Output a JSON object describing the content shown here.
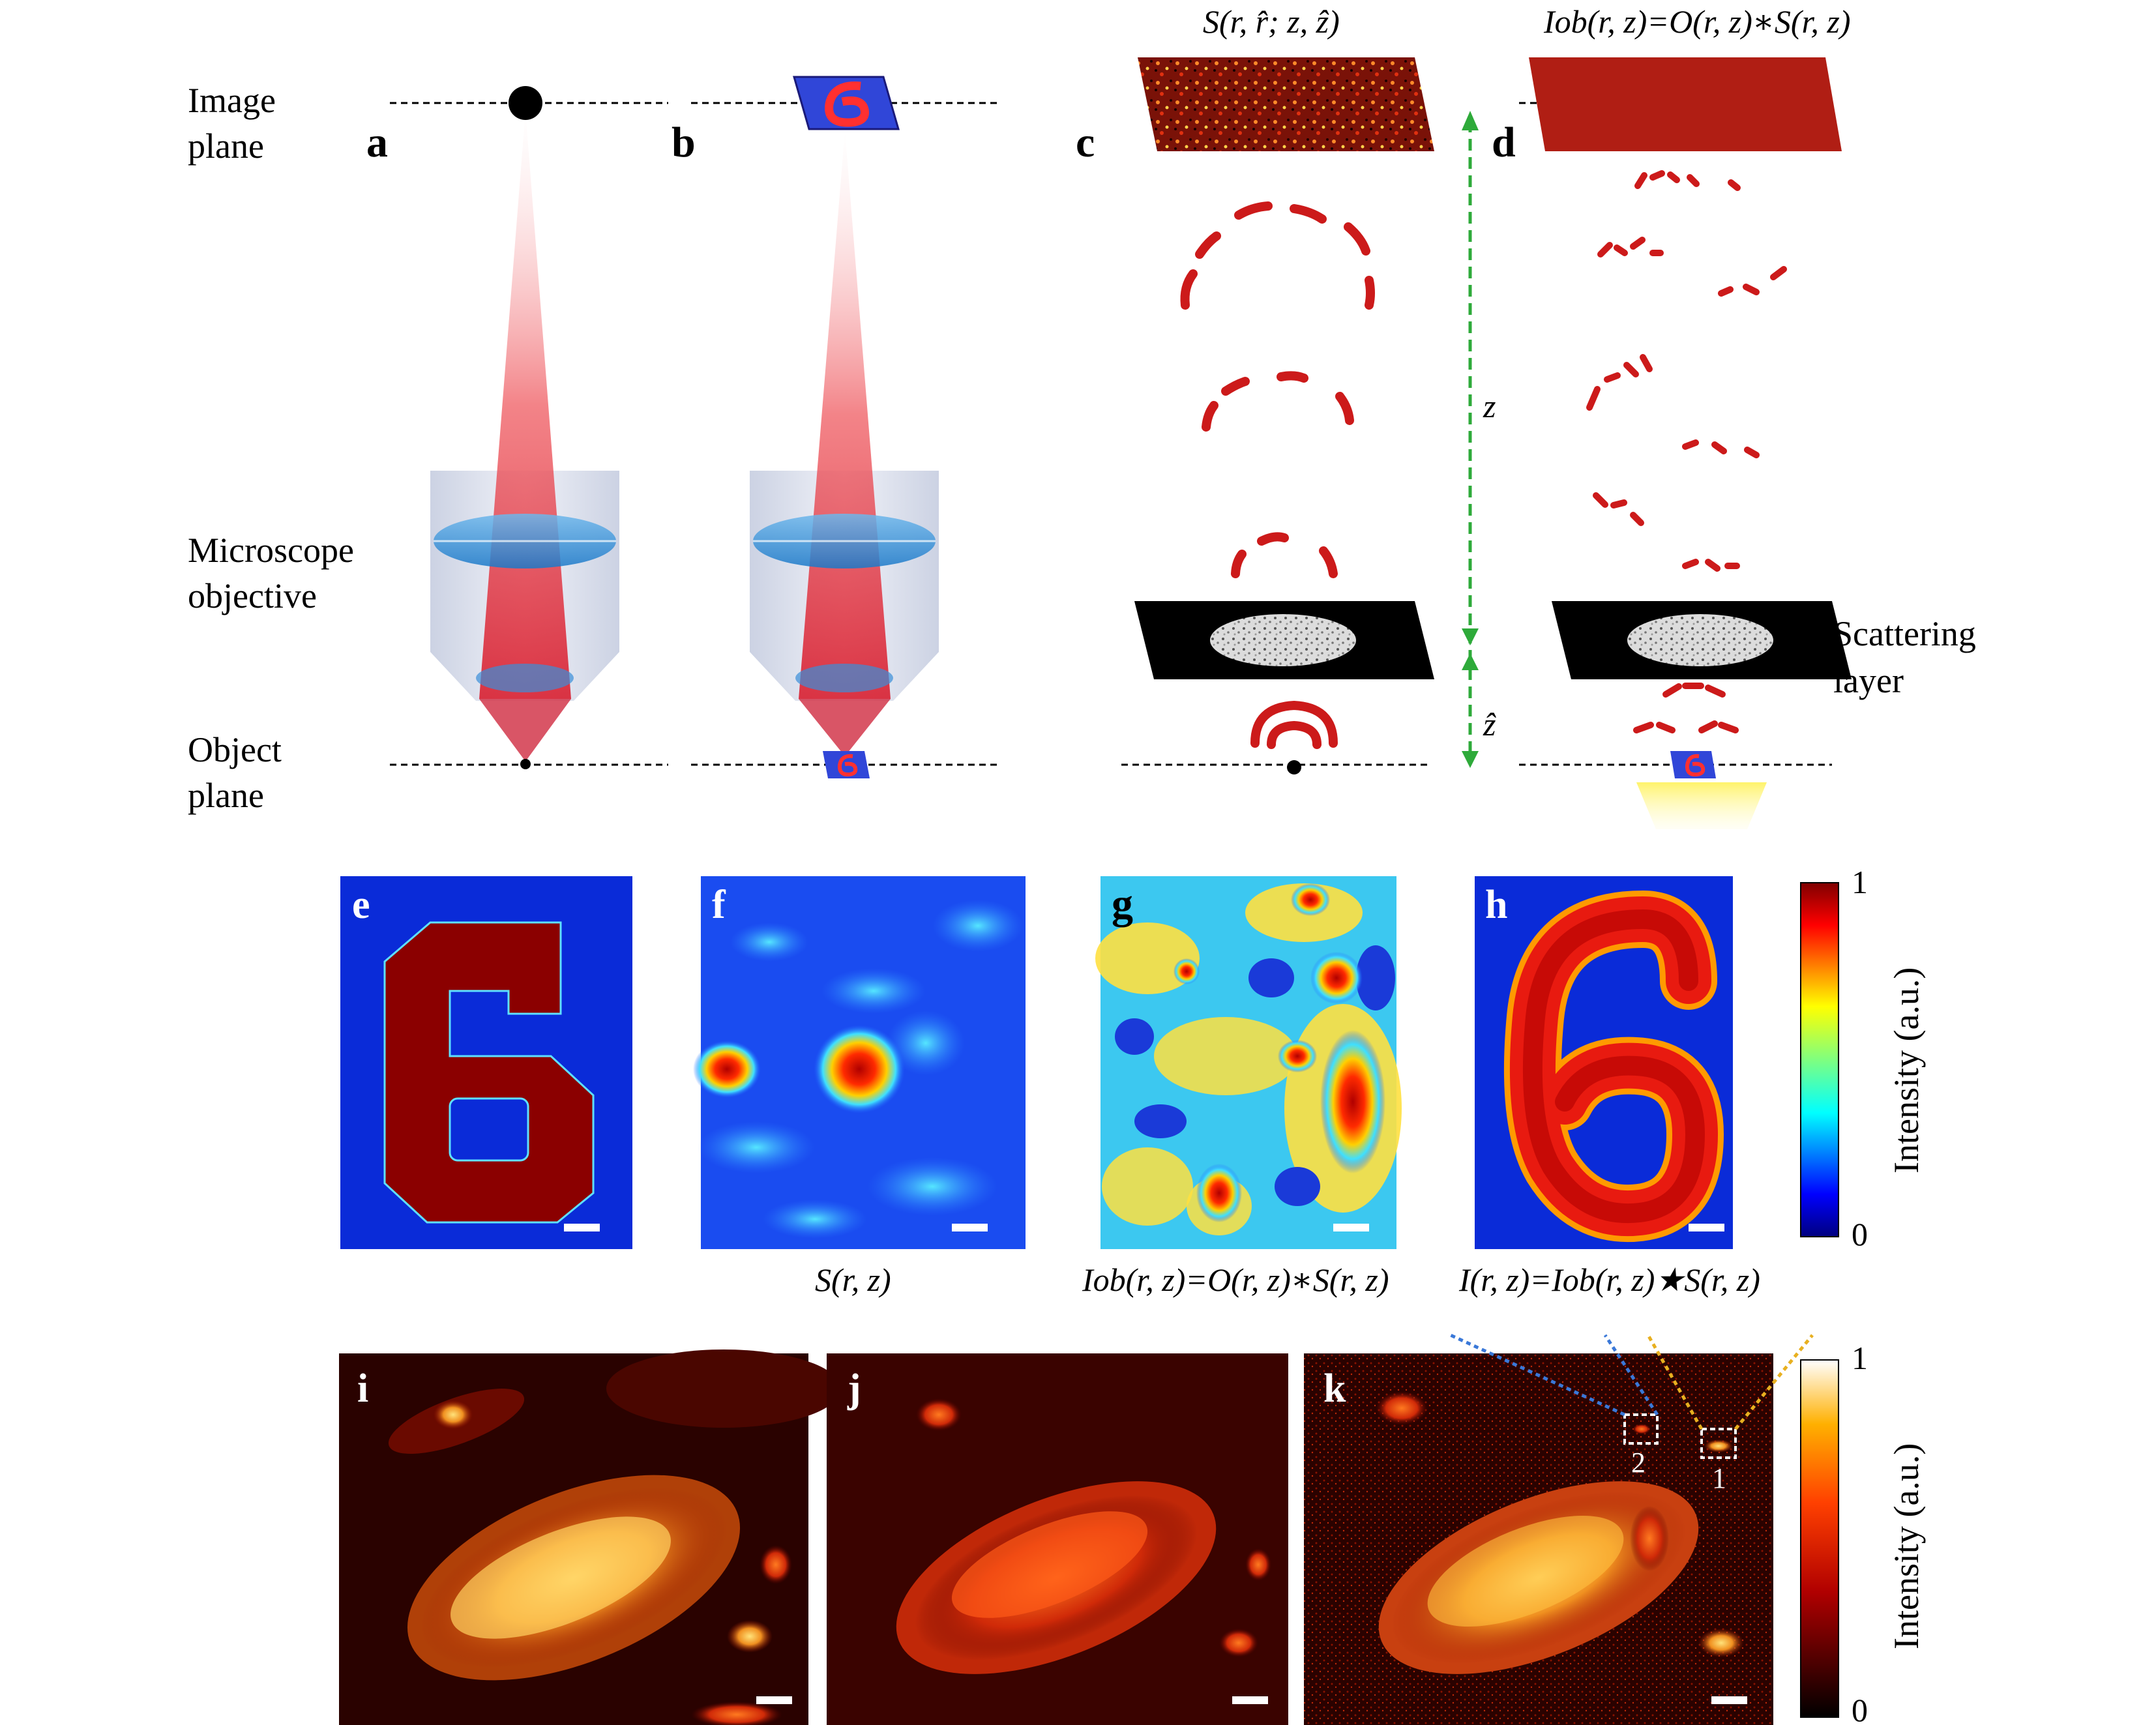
{
  "figure": {
    "left_labels": {
      "image_plane": [
        "Image",
        "plane"
      ],
      "microscope_objective": [
        "Microscope",
        "objective"
      ],
      "object_plane": [
        "Object",
        "plane"
      ],
      "scattering_layer": [
        "Scattering",
        "layer"
      ],
      "z": "z",
      "z_hat": "ẑ"
    },
    "panels": {
      "a": "a",
      "b": "b",
      "c": "c",
      "d": "d",
      "e": "e",
      "f": "f",
      "g": "g",
      "h": "h",
      "i": "i",
      "j": "j",
      "k": "k"
    },
    "equations": {
      "c_top": "S(r, r̂; z, ẑ)",
      "d_top": "Iob(r, z)=O(r, z)∗S(r, z)",
      "f_bottom": "S(r, z)",
      "g_bottom": "Iob(r, z)=O(r, z)∗S(r, z)",
      "h_bottom": "I(r, z)=Iob(r, z)★S(r, z)"
    },
    "colorbar_jet": {
      "max": "1",
      "min": "0",
      "label": "Intensity (a.u.)"
    },
    "colorbar_hot": {
      "max": "1",
      "min": "0",
      "label": "Intensity (a.u.)"
    },
    "roi_labels": [
      "2",
      "1"
    ],
    "colors": {
      "beam": "#e8404a",
      "jet_low": "#0a2bd8",
      "jet_high": "#8b0000",
      "hot_high": "#fff6a8",
      "speckle_red": "#cc1a1a"
    }
  }
}
